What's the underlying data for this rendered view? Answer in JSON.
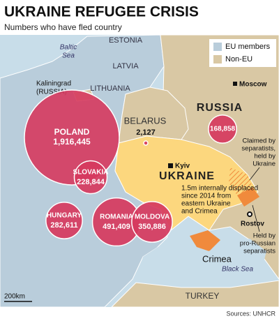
{
  "header": {
    "title": "UKRAINE REFUGEE CRISIS",
    "subtitle": "Numbers who have fled country"
  },
  "legend": {
    "items": [
      {
        "label": "EU members",
        "color": "#b9cddb"
      },
      {
        "label": "Non-EU",
        "color": "#d9c8a4"
      }
    ]
  },
  "bubbles": [
    {
      "name": "POLAND",
      "value": 1916445,
      "label": "1,916,445"
    },
    {
      "name": "SLOVAKIA",
      "value": 228844,
      "label": "228,844"
    },
    {
      "name": "HUNGARY",
      "value": 282611,
      "label": "282,611"
    },
    {
      "name": "ROMANIA",
      "value": 491409,
      "label": "491,409"
    },
    {
      "name": "MOLDOVA",
      "value": 350886,
      "label": "350,886"
    },
    {
      "name": "BELARUS",
      "value": 2127,
      "label": "2,127"
    },
    {
      "name": "RUSSIA",
      "value": 168858,
      "label": "168,858"
    }
  ],
  "map_labels": {
    "baltic_sea": [
      "Baltic",
      "Sea"
    ],
    "estonia": "ESTONIA",
    "latvia": "LATVIA",
    "lithuania": "LITHUANIA",
    "kaliningrad": [
      "Kaliningrad",
      "(RUSSIA)"
    ],
    "moscow": "Moscow",
    "ukraine": "UKRAINE",
    "kyiv": "Kyiv",
    "rostov": "Rostov",
    "crimea": "Crimea",
    "black_sea": "Black Sea",
    "turkey": "TURKEY"
  },
  "annotations": {
    "displaced": [
      "1.5m internally displaced",
      "since 2014 from",
      "eastern Ukraine",
      "and Crimea"
    ],
    "claimed": [
      "Claimed by",
      "separatists,",
      "held by",
      "Ukraine"
    ],
    "held": [
      "Held by",
      "pro-Russian",
      "separatists"
    ]
  },
  "footer": {
    "scale": "200km",
    "source": "Sources: UNHCR"
  }
}
